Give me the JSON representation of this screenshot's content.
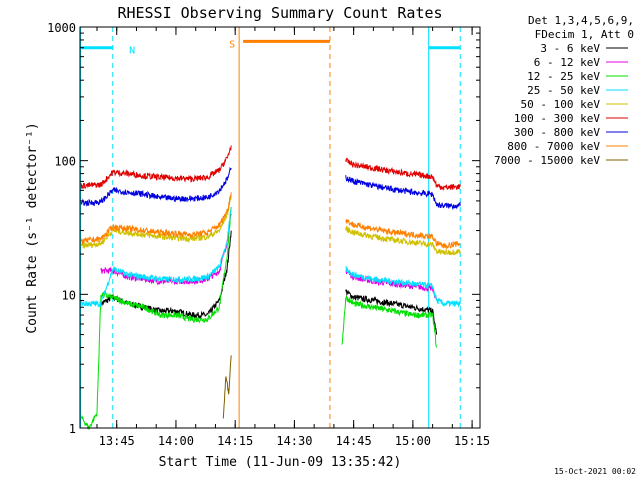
{
  "chart_data": {
    "type": "line",
    "title": "RHESSI Observing Summary Count Rates",
    "xlabel": "Start Time (11-Jun-09 13:35:42)",
    "ylabel": "Count Rate (s⁻¹ detector⁻¹)",
    "yscale": "log",
    "ylim": [
      1,
      1000
    ],
    "y_ticks": [
      "1",
      "10",
      "100",
      "1000"
    ],
    "xlim": [
      "13:35:42",
      "15:17:00"
    ],
    "x_ticks": [
      "13:45",
      "14:00",
      "14:15",
      "14:30",
      "14:45",
      "15:00",
      "15:15"
    ],
    "footer_date": "15-Oct-2021 00:02",
    "legend": {
      "placement": "right",
      "header": [
        "Det 1,3,4,5,6,9,",
        "FDecim 1, Att 0"
      ],
      "entries": [
        {
          "label": "3 - 6 keV",
          "color": "#000000"
        },
        {
          "label": "6 - 12 keV",
          "color": "#e000e0"
        },
        {
          "label": "12 - 25 keV",
          "color": "#00e000"
        },
        {
          "label": "25 - 50 keV",
          "color": "#00e0ff"
        },
        {
          "label": "50 - 100 keV",
          "color": "#d0c000"
        },
        {
          "label": "100 - 300 keV",
          "color": "#e00000"
        },
        {
          "label": "300 - 800 keV",
          "color": "#0000e0"
        },
        {
          "label": "800 - 7000 keV",
          "color": "#ff8000"
        },
        {
          "label": "7000 - 15000 keV",
          "color": "#806000"
        }
      ]
    },
    "flags": [
      {
        "label": "N",
        "color": "#00e0ff",
        "start": "13:36:00",
        "end": "13:44:00",
        "level": 700
      },
      {
        "label": "S",
        "color": "#ff8000",
        "start": "14:17:00",
        "end": "14:39:00",
        "level": 780
      },
      {
        "label": "",
        "color": "#00e0ff",
        "start": "15:04:00",
        "end": "15:12:00",
        "level": 700
      }
    ],
    "vertical_markers": [
      {
        "time": "13:35:50",
        "color": "#00e0ff",
        "style": "solid"
      },
      {
        "time": "13:44:00",
        "color": "#00e0ff",
        "style": "dashed"
      },
      {
        "time": "14:16:00",
        "color": "#ff8000",
        "style": "solid"
      },
      {
        "time": "14:39:00",
        "color": "#ff8000",
        "style": "dashed"
      },
      {
        "time": "15:04:00",
        "color": "#00e0ff",
        "style": "solid"
      },
      {
        "time": "15:12:00",
        "color": "#00e0ff",
        "style": "dashed"
      }
    ],
    "series": [
      {
        "name": "3 - 6 keV",
        "color": "#000000",
        "segments": [
          {
            "x": [
              "13:41:00",
              "13:44:00",
              "13:48:00",
              "13:52:00",
              "13:56:00",
              "14:00:00",
              "14:04:00",
              "14:08:00",
              "14:11:00",
              "14:13:00",
              "14:14:00"
            ],
            "y": [
              8.5,
              9.5,
              8.5,
              8.0,
              7.5,
              7.5,
              7.0,
              7.0,
              9,
              16,
              30
            ]
          },
          {
            "x": [
              "14:43:00",
              "14:45:00",
              "14:50:00",
              "14:55:00",
              "15:00:00",
              "15:05:00",
              "15:06:00"
            ],
            "y": [
              10.5,
              9.5,
              9.0,
              8.5,
              8.0,
              7.5,
              5
            ]
          }
        ]
      },
      {
        "name": "6 - 12 keV",
        "color": "#e000e0",
        "segments": [
          {
            "x": [
              "13:41:00",
              "13:44:00",
              "13:48:00",
              "13:52:00",
              "13:56:00",
              "14:00:00",
              "14:04:00",
              "14:08:00",
              "14:11:00",
              "14:13:00",
              "14:14:00"
            ],
            "y": [
              15,
              15,
              13.5,
              13,
              12.5,
              12.5,
              12.5,
              13,
              15,
              25,
              40
            ]
          },
          {
            "x": [
              "14:43:00",
              "14:45:00",
              "14:50:00",
              "14:55:00",
              "15:00:00",
              "15:05:00",
              "15:06:00"
            ],
            "y": [
              15,
              13.5,
              12.5,
              12,
              11.5,
              11,
              9
            ]
          }
        ]
      },
      {
        "name": "12 - 25 keV",
        "color": "#00e000",
        "segments": [
          {
            "x": [
              "13:36:00",
              "13:38:00",
              "13:40:00",
              "13:41:00",
              "13:44:00",
              "13:48:00",
              "13:52:00",
              "13:56:00",
              "14:00:00",
              "14:04:00",
              "14:08:00",
              "14:11:00",
              "14:13:00",
              "14:14:00"
            ],
            "y": [
              1.2,
              1.0,
              1.3,
              10,
              9.5,
              8.5,
              8.0,
              7.0,
              7.0,
              6.5,
              6.5,
              8,
              20,
              45
            ]
          },
          {
            "x": [
              "14:42:00",
              "14:43:00",
              "14:45:00",
              "14:50:00",
              "14:55:00",
              "15:00:00",
              "15:05:00",
              "15:06:00"
            ],
            "y": [
              4,
              9.5,
              8.5,
              8.0,
              7.5,
              7.0,
              7.0,
              4
            ]
          }
        ]
      },
      {
        "name": "25 - 50 keV",
        "color": "#00e0ff",
        "segments": [
          {
            "x": [
              "13:36:00",
              "13:41:00",
              "13:44:00",
              "13:48:00",
              "13:52:00",
              "13:56:00",
              "14:00:00",
              "14:04:00",
              "14:08:00",
              "14:11:00",
              "14:13:00",
              "14:14:00"
            ],
            "y": [
              8.5,
              8.5,
              15.5,
              14,
              13.5,
              13,
              13,
              13,
              13.5,
              16,
              25,
              45
            ]
          },
          {
            "x": [
              "14:43:00",
              "14:45:00",
              "14:50:00",
              "14:55:00",
              "15:00:00",
              "15:05:00",
              "15:06:00",
              "15:08:00",
              "15:12:00"
            ],
            "y": [
              15.5,
              14,
              13,
              12.5,
              12,
              11.5,
              9,
              8.5,
              8.5
            ]
          }
        ]
      },
      {
        "name": "50 - 100 keV",
        "color": "#d0c000",
        "segments": [
          {
            "x": [
              "13:36:00",
              "13:41:00",
              "13:44:00",
              "13:48:00",
              "13:52:00",
              "13:56:00",
              "14:00:00",
              "14:04:00",
              "14:08:00",
              "14:11:00",
              "14:13:00",
              "14:14:00"
            ],
            "y": [
              23,
              24,
              30,
              29,
              28,
              27,
              26.5,
              26,
              27,
              30,
              40,
              55
            ]
          },
          {
            "x": [
              "14:43:00",
              "14:45:00",
              "14:50:00",
              "14:55:00",
              "15:00:00",
              "15:05:00",
              "15:06:00",
              "15:08:00",
              "15:12:00"
            ],
            "y": [
              31,
              29,
              27,
              25.5,
              24.5,
              23.5,
              21,
              20.5,
              21
            ]
          }
        ]
      },
      {
        "name": "100 - 300 keV",
        "color": "#e00000",
        "segments": [
          {
            "x": [
              "13:36:00",
              "13:41:00",
              "13:44:00",
              "13:48:00",
              "13:52:00",
              "13:56:00",
              "14:00:00",
              "14:04:00",
              "14:08:00",
              "14:11:00",
              "14:13:00",
              "14:14:00"
            ],
            "y": [
              65,
              66,
              82,
              80,
              77,
              75,
              74,
              73,
              75,
              85,
              105,
              130
            ]
          },
          {
            "x": [
              "14:43:00",
              "14:45:00",
              "14:50:00",
              "14:55:00",
              "15:00:00",
              "15:05:00",
              "15:06:00",
              "15:08:00",
              "15:12:00"
            ],
            "y": [
              100,
              93,
              88,
              83,
              79,
              76,
              65,
              63,
              64
            ]
          }
        ]
      },
      {
        "name": "300 - 800 keV",
        "color": "#0000e0",
        "segments": [
          {
            "x": [
              "13:36:00",
              "13:41:00",
              "13:44:00",
              "13:48:00",
              "13:52:00",
              "13:56:00",
              "14:00:00",
              "14:04:00",
              "14:08:00",
              "14:11:00",
              "14:13:00",
              "14:14:00"
            ],
            "y": [
              48,
              49,
              60,
              58,
              56,
              53,
              52,
              52,
              53,
              60,
              73,
              88
            ]
          },
          {
            "x": [
              "14:43:00",
              "14:45:00",
              "14:50:00",
              "14:55:00",
              "15:00:00",
              "15:05:00",
              "15:06:00",
              "15:08:00",
              "15:12:00"
            ],
            "y": [
              75,
              70,
              65,
              61,
              58,
              56,
              47,
              46,
              46
            ]
          }
        ]
      },
      {
        "name": "800 - 7000 keV",
        "color": "#ff8000",
        "segments": [
          {
            "x": [
              "13:36:00",
              "13:41:00",
              "13:44:00",
              "13:48:00",
              "13:52:00",
              "13:56:00",
              "14:00:00",
              "14:04:00",
              "14:08:00",
              "14:11:00",
              "14:13:00",
              "14:14:00"
            ],
            "y": [
              25,
              26,
              32,
              31,
              30,
              29,
              28.5,
              28,
              29,
              33,
              42,
              58
            ]
          },
          {
            "x": [
              "14:43:00",
              "14:45:00",
              "14:50:00",
              "14:55:00",
              "15:00:00",
              "15:05:00",
              "15:06:00",
              "15:08:00",
              "15:12:00"
            ],
            "y": [
              36,
              33,
              31,
              29,
              28,
              27,
              24,
              23,
              24
            ]
          }
        ]
      },
      {
        "name": "7000 - 15000 keV",
        "color": "#806000",
        "segments": [
          {
            "x": [
              "14:12:00",
              "14:12:40",
              "14:13:20",
              "14:14:00"
            ],
            "y": [
              1.2,
              2.5,
              1.8,
              3.5
            ]
          }
        ]
      }
    ]
  }
}
